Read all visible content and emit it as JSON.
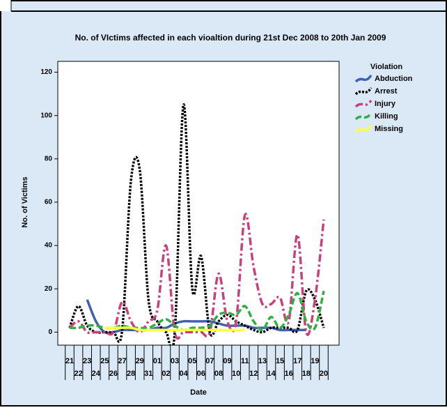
{
  "chart_data": {
    "type": "line",
    "title": "No. of VIctims affected in each vioaltion during 21st Dec 2008 to 20th Jan 2009",
    "xlabel": "Date",
    "ylabel": "No. of Victims",
    "legend_title": "Violation",
    "categories": [
      "21",
      "22",
      "23",
      "24",
      "25",
      "26",
      "27",
      "28",
      "29",
      "31",
      "01",
      "02",
      "03",
      "04",
      "05",
      "06",
      "07",
      "08",
      "09",
      "10",
      "11",
      "12",
      "13",
      "14",
      "15",
      "16",
      "17",
      "18",
      "19",
      "20"
    ],
    "ylim": [
      -6,
      125
    ],
    "yticks": [
      0,
      20,
      40,
      60,
      80,
      100,
      120
    ],
    "series": [
      {
        "name": "Abduction",
        "color": "#4060b0",
        "dash": "",
        "values": [
          null,
          null,
          15,
          5,
          0,
          0,
          1,
          1,
          1,
          1,
          2,
          2,
          4,
          5,
          5,
          5,
          5,
          4,
          3,
          3,
          3,
          2,
          2,
          2,
          1,
          1,
          1,
          1,
          null,
          null
        ]
      },
      {
        "name": "Arrest",
        "color": "#000000",
        "dash": "3,2",
        "values": [
          2,
          12,
          3,
          0,
          0,
          0,
          1,
          70,
          75,
          15,
          5,
          0,
          0,
          105,
          20,
          35,
          0,
          5,
          8,
          5,
          3,
          1,
          0,
          2,
          2,
          2,
          1,
          19,
          15,
          2
        ]
      },
      {
        "name": "Injury",
        "color": "#c8407c",
        "dash": "11,4,3,4",
        "values": [
          2,
          5,
          0,
          0,
          0,
          0,
          14,
          5,
          0,
          5,
          10,
          40,
          0,
          0,
          0,
          0,
          0,
          27,
          5,
          5,
          54,
          30,
          13,
          13,
          16,
          5,
          45,
          0,
          15,
          52
        ]
      },
      {
        "name": "Killing",
        "color": "#30b040",
        "dash": "9,4",
        "values": [
          2,
          2,
          3,
          3,
          2,
          2,
          3,
          2,
          2,
          2,
          4,
          6,
          3,
          1,
          2,
          2,
          3,
          8,
          9,
          8,
          12,
          5,
          1,
          7,
          2,
          8,
          18,
          5,
          2,
          19
        ]
      },
      {
        "name": "Missing",
        "color": "#ffff44",
        "dash": "",
        "values": [
          null,
          null,
          null,
          null,
          2,
          2,
          2,
          2,
          1,
          1,
          1,
          1,
          1,
          1,
          1,
          1,
          1,
          1,
          1,
          1,
          1,
          null,
          null,
          null,
          null,
          null,
          null,
          null,
          null,
          null
        ]
      }
    ]
  }
}
